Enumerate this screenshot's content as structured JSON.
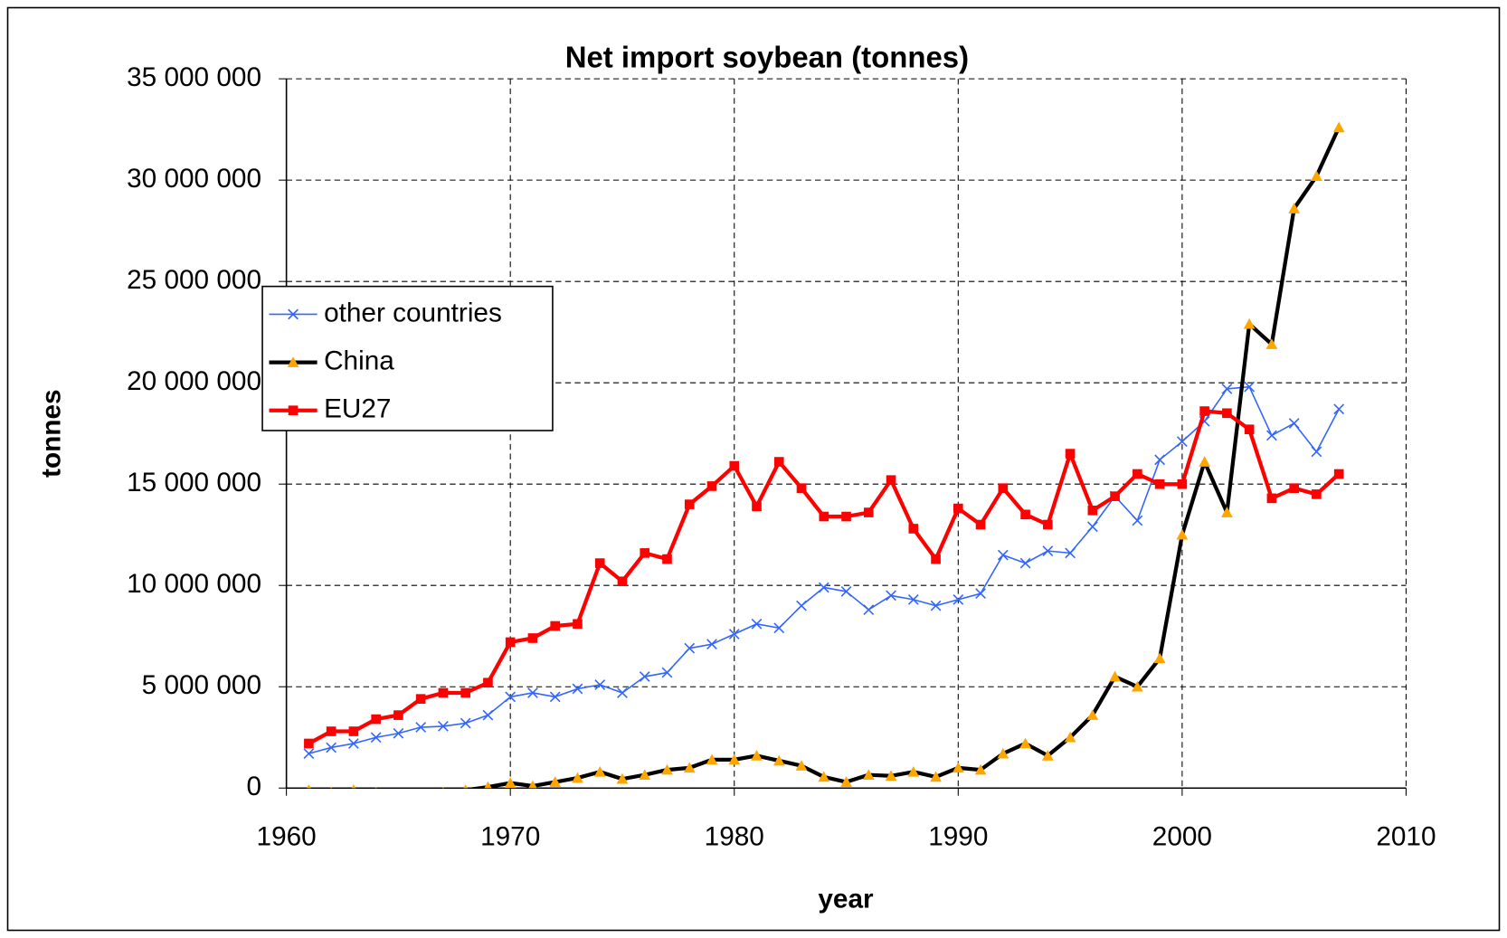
{
  "chart_data": {
    "type": "line",
    "title": "Net import soybean (tonnes)",
    "x_label": "year",
    "y_label": "tonnes",
    "x": [
      1961,
      1962,
      1963,
      1964,
      1965,
      1966,
      1967,
      1968,
      1969,
      1970,
      1971,
      1972,
      1973,
      1974,
      1975,
      1976,
      1977,
      1978,
      1979,
      1980,
      1981,
      1982,
      1983,
      1984,
      1985,
      1986,
      1987,
      1988,
      1989,
      1990,
      1991,
      1992,
      1993,
      1994,
      1995,
      1996,
      1997,
      1998,
      1999,
      2000,
      2001,
      2002,
      2003,
      2004,
      2005,
      2006,
      2007
    ],
    "series": [
      {
        "name": "other countries",
        "color": "#3366ff",
        "marker": "x",
        "values": [
          1700000,
          2000000,
          2200000,
          2500000,
          2700000,
          3000000,
          3050000,
          3200000,
          3600000,
          4500000,
          4700000,
          4500000,
          4900000,
          5100000,
          4700000,
          5500000,
          5700000,
          6900000,
          7100000,
          7600000,
          8100000,
          7900000,
          9000000,
          9900000,
          9700000,
          8800000,
          9500000,
          9300000,
          9000000,
          9300000,
          9600000,
          11500000,
          11100000,
          11700000,
          11600000,
          12900000,
          14400000,
          13200000,
          16200000,
          17100000,
          18100000,
          19700000,
          19800000,
          17400000,
          18000000,
          16600000,
          18700000
        ]
      },
      {
        "name": "China",
        "color": "#000000",
        "marker": "triangle",
        "marker_color": "#ffa500",
        "values": [
          -100000,
          -200000,
          -100000,
          -200000,
          -300000,
          -300000,
          -200000,
          -100000,
          50000,
          250000,
          100000,
          300000,
          500000,
          800000,
          450000,
          650000,
          900000,
          1000000,
          1400000,
          1400000,
          1600000,
          1350000,
          1100000,
          550000,
          300000,
          650000,
          600000,
          800000,
          550000,
          1000000,
          900000,
          1700000,
          2200000,
          1600000,
          2500000,
          3600000,
          5500000,
          5000000,
          6400000,
          12500000,
          16100000,
          13600000,
          22900000,
          21900000,
          28600000,
          30200000,
          32600000
        ]
      },
      {
        "name": "EU27",
        "color": "#ff0000",
        "marker": "square",
        "values": [
          2200000,
          2800000,
          2800000,
          3400000,
          3600000,
          4400000,
          4700000,
          4700000,
          5200000,
          7200000,
          7400000,
          8000000,
          8100000,
          11100000,
          10200000,
          11600000,
          11300000,
          14000000,
          14900000,
          15900000,
          13900000,
          16100000,
          14800000,
          13400000,
          13400000,
          13600000,
          15200000,
          12800000,
          11300000,
          13800000,
          13000000,
          14800000,
          13500000,
          13000000,
          16500000,
          13700000,
          14400000,
          15500000,
          15000000,
          15000000,
          18600000,
          18500000,
          17700000,
          14300000,
          14800000,
          14500000,
          15500000
        ]
      }
    ],
    "xlim": [
      1960,
      2010
    ],
    "xticks": [
      1960,
      1970,
      1980,
      1990,
      2000,
      2010
    ],
    "ylim": [
      0,
      35000000
    ],
    "yticks": [
      {
        "value": 0,
        "label": "0"
      },
      {
        "value": 5000000,
        "label": "5 000 000"
      },
      {
        "value": 10000000,
        "label": "10 000 000"
      },
      {
        "value": 15000000,
        "label": "15 000 000"
      },
      {
        "value": 20000000,
        "label": "20 000 000"
      },
      {
        "value": 25000000,
        "label": "25 000 000"
      },
      {
        "value": 30000000,
        "label": "30 000 000"
      },
      {
        "value": 35000000,
        "label": "35 000 000"
      }
    ],
    "grid": true,
    "legend": "left"
  }
}
